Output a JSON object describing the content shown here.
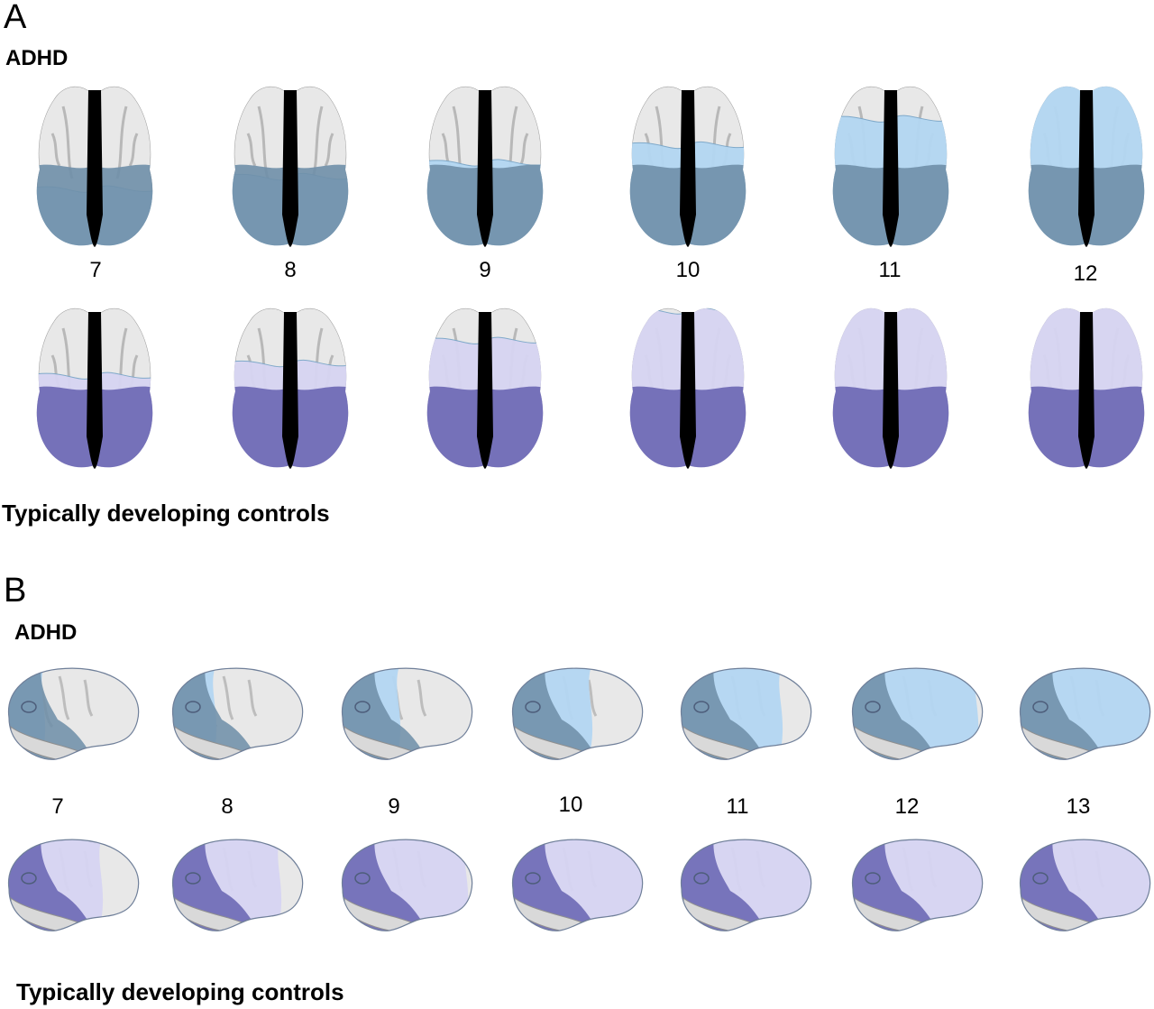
{
  "panel_a": {
    "letter": "A",
    "top_label": "ADHD",
    "bottom_label": "Typically developing controls",
    "ages": [
      "7",
      "8",
      "9",
      "10",
      "11",
      "12"
    ]
  },
  "panel_b": {
    "letter": "B",
    "top_label": "ADHD",
    "bottom_label": "Typically developing controls",
    "ages": [
      "7",
      "8",
      "9",
      "10",
      "11",
      "12",
      "13"
    ]
  },
  "colors": {
    "cortex_gray": "#e8e8e8",
    "adhd_light": "#b3d6f2",
    "adhd_dark": "#6f8fa8",
    "control_light": "#d6d4f2",
    "control_dark": "#6a66b3",
    "midline": "#000000"
  },
  "maturation_fraction": {
    "adhd_axial": [
      0.35,
      0.42,
      0.5,
      0.6,
      0.75,
      1.0
    ],
    "control_axial": [
      0.55,
      0.62,
      0.75,
      0.92,
      0.97,
      1.0
    ],
    "adhd_lateral": [
      0.3,
      0.35,
      0.45,
      0.6,
      0.75,
      0.92,
      1.0
    ],
    "control_lateral": [
      0.7,
      0.8,
      0.92,
      0.97,
      1.0,
      1.0,
      1.0
    ]
  }
}
